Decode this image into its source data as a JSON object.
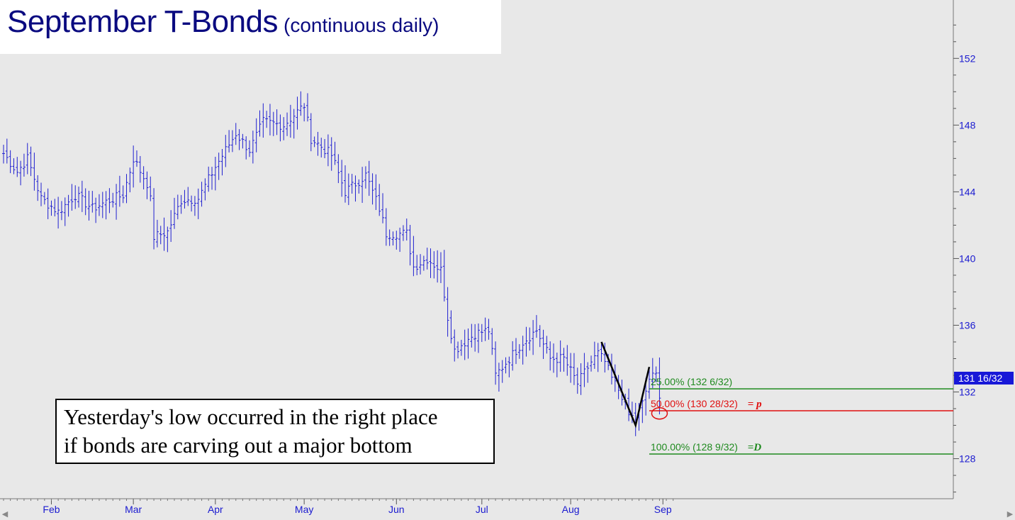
{
  "title": {
    "main": "September T-Bonds",
    "sub": "(continuous daily)"
  },
  "note": {
    "line1": "Yesterday's low occurred in the right place",
    "line2": "if bonds are carving out a major bottom"
  },
  "current_price_label": "131 16/32",
  "colors": {
    "bars": "#2020d0",
    "axis_text": "#1a1ad0",
    "fib_green": "#1f8a1f",
    "fib_red": "#e01010",
    "pattern": "#000000",
    "background": "#e8e8e8"
  },
  "chart_data": {
    "type": "ohlc",
    "y_axis": {
      "min": 125.6,
      "max": 155.5,
      "ticks": [
        128,
        132,
        136,
        140,
        144,
        148,
        152
      ],
      "position": "right"
    },
    "x_axis": {
      "months": [
        "Feb",
        "Mar",
        "Apr",
        "May",
        "Jun",
        "Jul",
        "Aug",
        "Sep"
      ]
    },
    "waypoints": [
      [
        0,
        146.3
      ],
      [
        4,
        145.2
      ],
      [
        7,
        146.0
      ],
      [
        11,
        143.6
      ],
      [
        16,
        142.8
      ],
      [
        21,
        143.8
      ],
      [
        26,
        143.0
      ],
      [
        31,
        143.5
      ],
      [
        35,
        143.8
      ],
      [
        38,
        146.0
      ],
      [
        42,
        144.5
      ],
      [
        43,
        143.5
      ],
      [
        44,
        141.3
      ],
      [
        48,
        141.6
      ],
      [
        52,
        143.5
      ],
      [
        57,
        143.6
      ],
      [
        62,
        145.5
      ],
      [
        68,
        147.5
      ],
      [
        72,
        146.5
      ],
      [
        76,
        148.2
      ],
      [
        82,
        148.0
      ],
      [
        88,
        149.2
      ],
      [
        90,
        147.2
      ],
      [
        96,
        146.2
      ],
      [
        100,
        144.0
      ],
      [
        106,
        145.0
      ],
      [
        110,
        143.0
      ],
      [
        112,
        141.5
      ],
      [
        118,
        141.5
      ],
      [
        120,
        139.5
      ],
      [
        124,
        140.0
      ],
      [
        128,
        139.3
      ],
      [
        130,
        136.5
      ],
      [
        132,
        134.5
      ],
      [
        138,
        135.5
      ],
      [
        142,
        135.7
      ],
      [
        144,
        133.0
      ],
      [
        146,
        133.5
      ],
      [
        152,
        135.0
      ],
      [
        156,
        135.7
      ],
      [
        160,
        134.0
      ],
      [
        164,
        134.0
      ],
      [
        168,
        132.5
      ],
      [
        172,
        133.8
      ],
      [
        174,
        134.3
      ],
      [
        176,
        133.8
      ],
      [
        178,
        132.8
      ],
      [
        181,
        131.8
      ],
      [
        183,
        130.6
      ],
      [
        185,
        130.4
      ],
      [
        187,
        131.3
      ],
      [
        189,
        132.8
      ],
      [
        191,
        133.0
      ],
      [
        192,
        131.9
      ]
    ],
    "months_at_index": {
      "Feb": 14,
      "Mar": 38,
      "Apr": 62,
      "May": 88,
      "Jun": 115,
      "Jul": 140,
      "Aug": 166,
      "Sep": 193
    },
    "fib_levels": [
      {
        "label": "25.00% (132 6/32)",
        "value": 132.1875,
        "color": "#1f8a1f"
      },
      {
        "label": "50.00% (130 28/32)",
        "value": 130.875,
        "color": "#e01010",
        "suffix": "= p"
      },
      {
        "label": "100.00% (128 9/32)",
        "value": 128.28,
        "color": "#1f8a1f",
        "suffix": "=D"
      }
    ],
    "pattern": {
      "points": [
        [
          175,
          135.0
        ],
        [
          185,
          130.0
        ],
        [
          189,
          133.5
        ]
      ]
    },
    "circle": {
      "index": 192,
      "value": 130.8
    }
  }
}
